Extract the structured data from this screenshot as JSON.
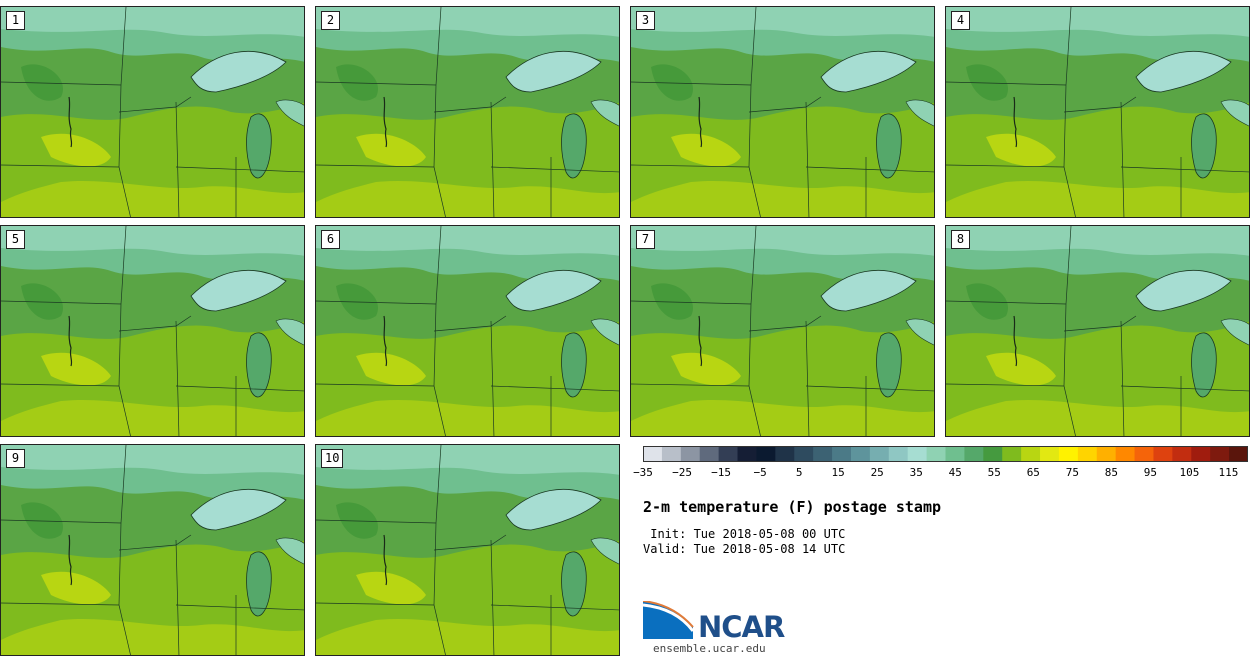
{
  "panels": [
    {
      "label": "1"
    },
    {
      "label": "2"
    },
    {
      "label": "3"
    },
    {
      "label": "4"
    },
    {
      "label": "5"
    },
    {
      "label": "6"
    },
    {
      "label": "7"
    },
    {
      "label": "8"
    },
    {
      "label": "9"
    },
    {
      "label": "10"
    }
  ],
  "colorbar": {
    "tick_labels": [
      "−35",
      "−25",
      "−15",
      "−5",
      "5",
      "15",
      "25",
      "35",
      "45",
      "55",
      "65",
      "75",
      "85",
      "95",
      "105",
      "115"
    ],
    "range": [
      -35,
      120
    ],
    "colors": [
      "#dfe3ea",
      "#b8bfc9",
      "#8c95a3",
      "#5f6a7d",
      "#333e55",
      "#151e35",
      "#0b1a30",
      "#1f3348",
      "#2e4b5f",
      "#3c6273",
      "#4b7a87",
      "#5e949c",
      "#76aeb0",
      "#8fc7c3",
      "#a6ddd2",
      "#8fd2b3",
      "#6fbf8f",
      "#55a86a",
      "#459a3f",
      "#7fbb1e",
      "#b8d612",
      "#e2e812",
      "#fff200",
      "#ffd400",
      "#ffb000",
      "#ff8800",
      "#f5640a",
      "#de420f",
      "#c22d10",
      "#a01c0e",
      "#7e1a0e",
      "#5a150c"
    ]
  },
  "title": "2-m temperature (F) postage stamp",
  "init": " Init: Tue 2018-05-08 00 UTC",
  "valid": "Valid: Tue 2018-05-08 14 UTC",
  "logo": {
    "text": "NCAR",
    "site": "ensemble.ucar.edu"
  }
}
